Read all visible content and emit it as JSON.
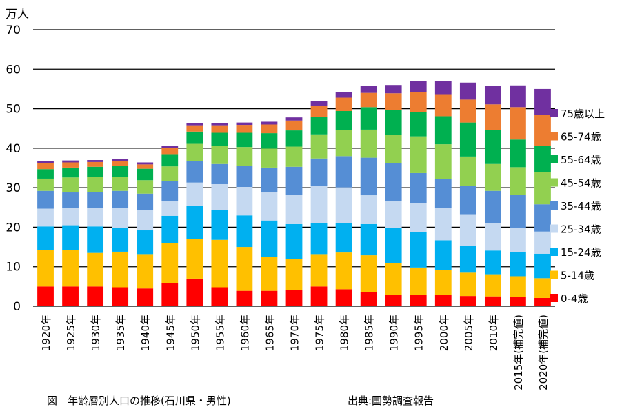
{
  "caption": "図　年齢層別人口の推移(石川県・男性)",
  "source": "出典:国勢調査報告",
  "chart_data": {
    "type": "bar",
    "stacked": true,
    "unit": "万人",
    "ylim": [
      0,
      70
    ],
    "yticks": [
      0,
      10,
      20,
      30,
      40,
      50,
      60,
      70
    ],
    "grid": true,
    "legend_position": "right",
    "categories": [
      "1920年",
      "1925年",
      "1930年",
      "1935年",
      "1940年",
      "1945年",
      "1950年",
      "1955年",
      "1960年",
      "1965年",
      "1970年",
      "1975年",
      "1980年",
      "1985年",
      "1990年",
      "1995年",
      "2000年",
      "2005年",
      "2010年",
      "2015年(補完値)",
      "2020年(補完値)"
    ],
    "series": [
      {
        "name": "0-4歳",
        "color": "#ff0000",
        "values": [
          5.0,
          5.0,
          5.0,
          4.8,
          4.5,
          5.8,
          7.0,
          4.8,
          3.9,
          3.9,
          4.1,
          5.0,
          4.3,
          3.5,
          2.9,
          2.8,
          2.8,
          2.6,
          2.5,
          2.3,
          2.1
        ]
      },
      {
        "name": "5-14歳",
        "color": "#ffc000",
        "values": [
          9.2,
          9.2,
          8.5,
          9.0,
          8.7,
          10.2,
          10.0,
          12.0,
          11.1,
          8.6,
          7.9,
          8.2,
          9.3,
          9.4,
          8.1,
          7.0,
          6.3,
          5.9,
          5.6,
          5.3,
          5.0
        ]
      },
      {
        "name": "15-24歳",
        "color": "#00b0f0",
        "values": [
          6.0,
          6.3,
          6.7,
          6.0,
          6.0,
          6.9,
          8.5,
          7.5,
          8.0,
          9.2,
          8.8,
          7.8,
          7.4,
          7.9,
          8.9,
          9.0,
          7.6,
          6.8,
          6.0,
          6.1,
          6.2
        ]
      },
      {
        "name": "25-34歳",
        "color": "#c5d9f1",
        "values": [
          4.5,
          4.3,
          4.7,
          5.1,
          5.1,
          3.8,
          5.8,
          6.6,
          7.2,
          7.1,
          7.4,
          9.4,
          9.1,
          7.3,
          6.8,
          7.3,
          8.2,
          8.0,
          6.9,
          6.1,
          5.6
        ]
      },
      {
        "name": "35-44歳",
        "color": "#558ed5",
        "values": [
          4.5,
          4.0,
          4.0,
          4.3,
          4.2,
          5.0,
          5.5,
          5.1,
          5.3,
          6.3,
          7.1,
          7.0,
          7.9,
          9.5,
          9.5,
          7.6,
          7.3,
          7.2,
          8.2,
          8.4,
          6.9
        ]
      },
      {
        "name": "45-54歳",
        "color": "#92d050",
        "values": [
          3.1,
          3.8,
          3.9,
          3.6,
          3.4,
          3.7,
          4.3,
          4.6,
          4.8,
          4.8,
          5.1,
          6.1,
          6.6,
          7.1,
          7.2,
          9.3,
          8.8,
          7.4,
          6.8,
          7.0,
          8.2
        ]
      },
      {
        "name": "55-64歳",
        "color": "#00b050",
        "values": [
          2.4,
          2.5,
          2.5,
          2.7,
          2.9,
          3.1,
          3.1,
          3.3,
          3.6,
          3.9,
          4.1,
          4.4,
          4.8,
          5.7,
          6.3,
          6.2,
          7.1,
          8.6,
          8.6,
          7.0,
          6.6
        ]
      },
      {
        "name": "65-74歳",
        "color": "#ed7d31",
        "values": [
          1.5,
          1.3,
          1.2,
          1.3,
          1.1,
          1.5,
          1.6,
          1.9,
          2.0,
          2.2,
          2.5,
          2.9,
          3.4,
          3.6,
          4.2,
          5.0,
          5.4,
          5.8,
          6.5,
          8.2,
          7.8
        ]
      },
      {
        "name": "75歳以上",
        "color": "#7030a0",
        "values": [
          0.5,
          0.5,
          0.5,
          0.5,
          0.5,
          0.5,
          0.5,
          0.5,
          0.6,
          0.7,
          0.8,
          1.1,
          1.4,
          1.7,
          2.1,
          2.8,
          3.5,
          4.3,
          4.7,
          5.5,
          6.6
        ]
      }
    ]
  }
}
